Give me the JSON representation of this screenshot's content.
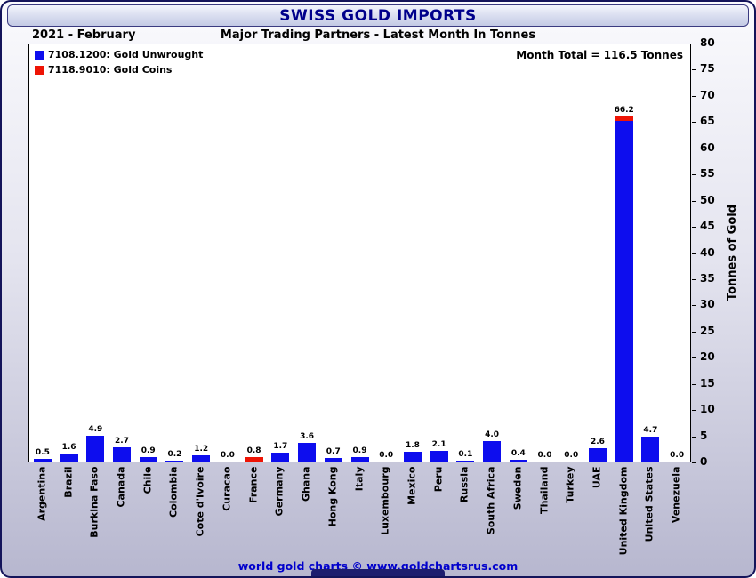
{
  "window": {
    "title": "SWISS GOLD IMPORTS",
    "period": "2021 - February",
    "subtitle": "Major Trading Partners - Latest Month In Tonnes",
    "footer": "world gold charts © www.goldchartsrus.com"
  },
  "plot": {
    "month_total": "Month Total = 116.5 Tonnes",
    "ylabel": "Tonnes of Gold"
  },
  "legend": [
    {
      "label": "7108.1200: Gold Unwrought",
      "color": "#0d0dee"
    },
    {
      "label": "7118.9010: Gold Coins",
      "color": "#ee1405"
    }
  ],
  "chart_data": {
    "type": "bar",
    "title": "SWISS GOLD IMPORTS",
    "subtitle": "Major Trading Partners - Latest Month In Tonnes",
    "period": "2021 - February",
    "month_total_tonnes": 116.5,
    "ylabel": "Tonnes of Gold",
    "ylim": [
      0,
      80
    ],
    "yticks": [
      0,
      5,
      10,
      15,
      20,
      25,
      30,
      35,
      40,
      45,
      50,
      55,
      60,
      65,
      70,
      75,
      80
    ],
    "grid": false,
    "legend_position": "top-left",
    "categories": [
      "Argentina",
      "Brazil",
      "Burkina Faso",
      "Canada",
      "Chile",
      "Colombia",
      "Cote d'Ivoire",
      "Curacao",
      "France",
      "Germany",
      "Ghana",
      "Hong Kong",
      "Italy",
      "Luxembourg",
      "Mexico",
      "Peru",
      "Russia",
      "South Africa",
      "Sweden",
      "Thailand",
      "Turkey",
      "UAE",
      "United Kingdom",
      "United States",
      "Venezuela"
    ],
    "series": [
      {
        "name": "7108.1200: Gold Unwrought",
        "color": "#0d0dee",
        "values": [
          0.5,
          1.6,
          4.9,
          2.7,
          0.9,
          0.2,
          1.2,
          0.0,
          0.0,
          1.7,
          3.6,
          0.7,
          0.9,
          0.0,
          1.8,
          2.1,
          0.1,
          4.0,
          0.4,
          0.0,
          0.0,
          2.6,
          65.4,
          4.7,
          0.0
        ]
      },
      {
        "name": "7118.9010: Gold Coins",
        "color": "#ee1405",
        "values": [
          0,
          0,
          0,
          0,
          0,
          0,
          0,
          0,
          0.8,
          0,
          0,
          0,
          0,
          0,
          0,
          0,
          0,
          0,
          0,
          0,
          0,
          0,
          0.8,
          0,
          0
        ]
      }
    ],
    "bar_total_labels": [
      "0.5",
      "1.6",
      "4.9",
      "2.7",
      "0.9",
      "0.2",
      "1.2",
      "0.0",
      "0.8",
      "1.7",
      "3.6",
      "0.7",
      "0.9",
      "0.0",
      "1.8",
      "2.1",
      "0.1",
      "4.0",
      "0.4",
      "0.0",
      "0.0",
      "2.6",
      "66.2",
      "4.7",
      "0.0"
    ]
  }
}
